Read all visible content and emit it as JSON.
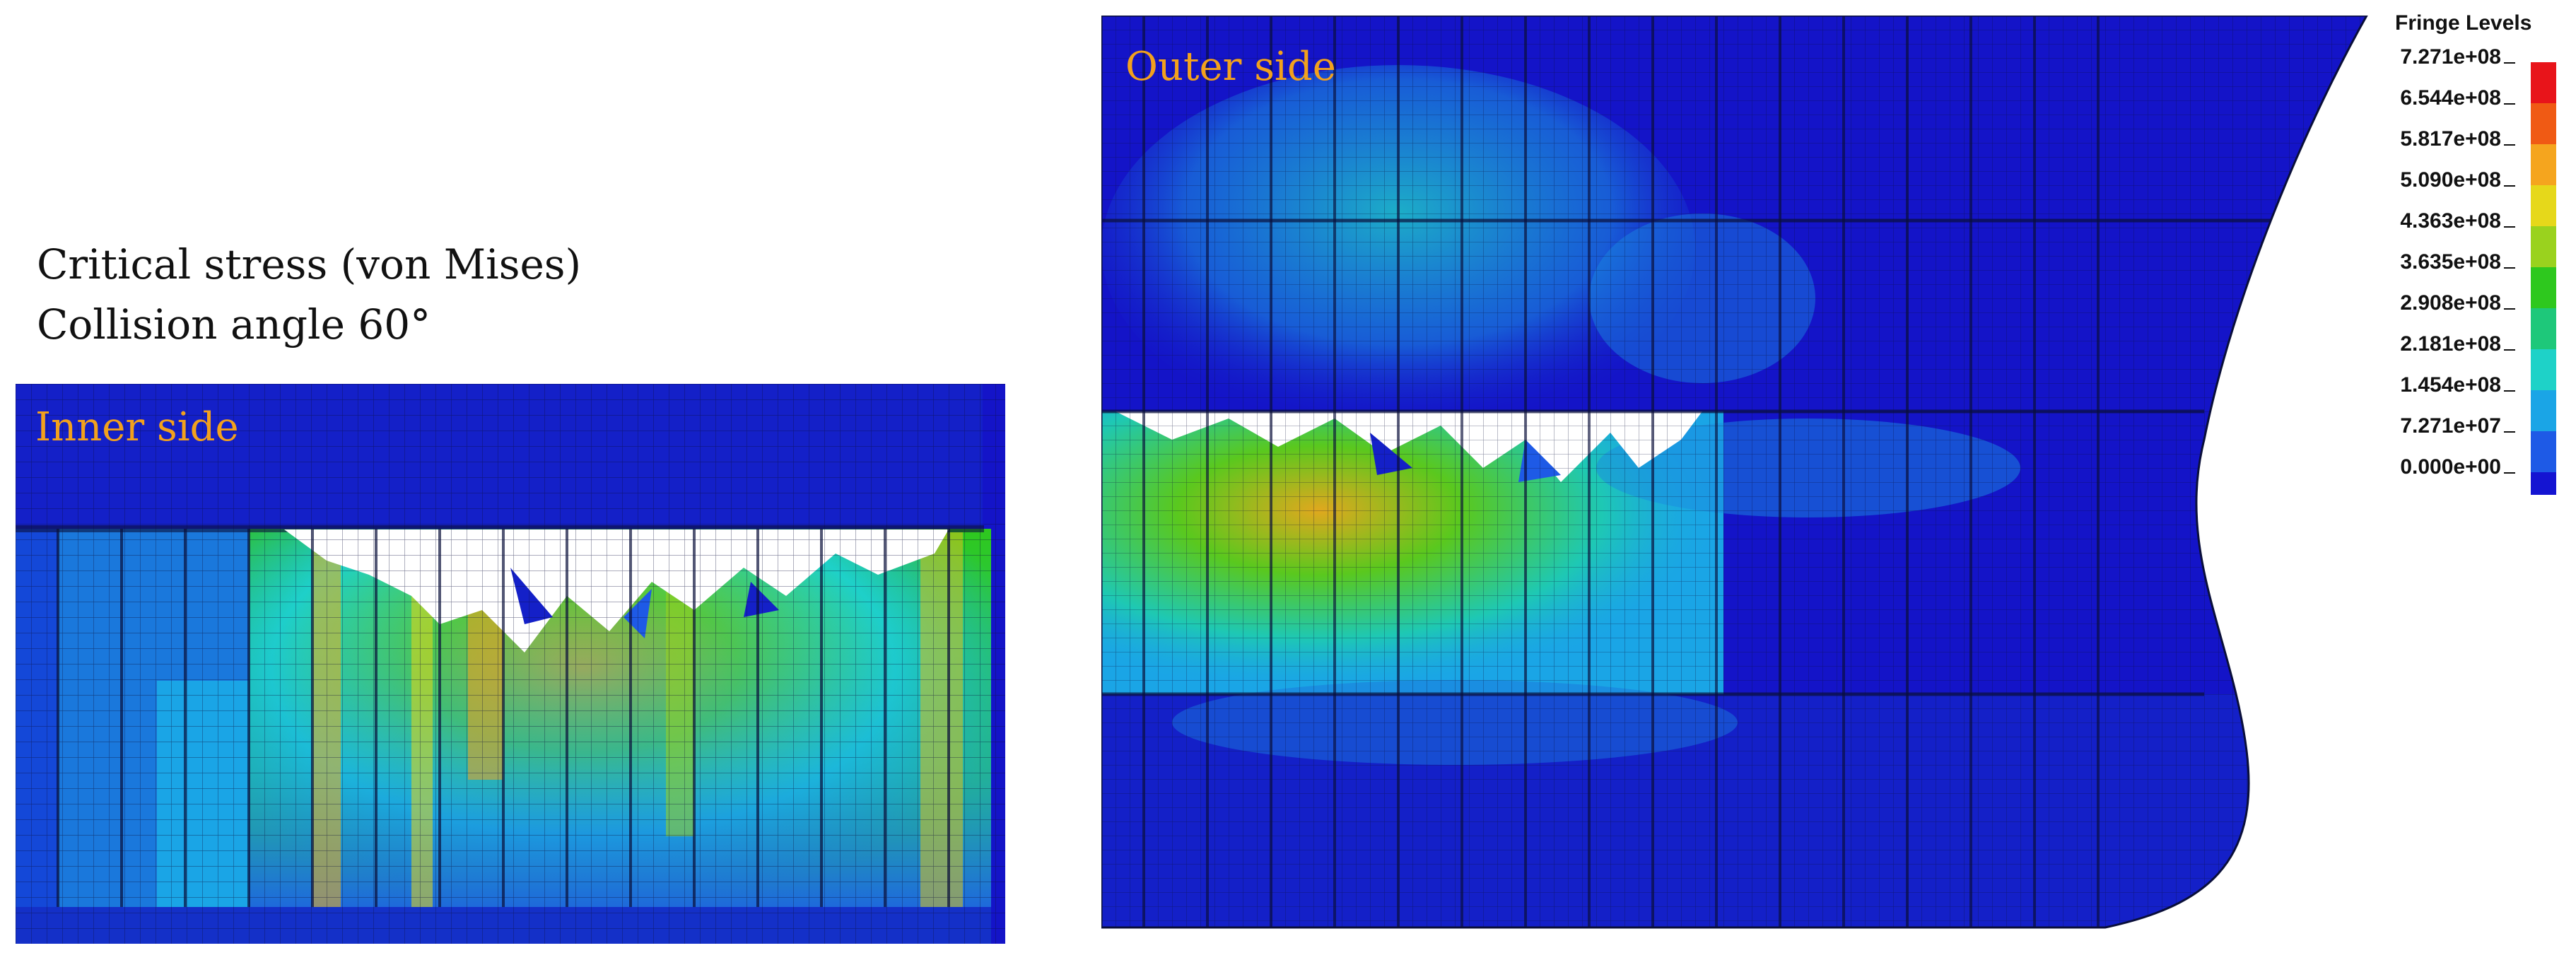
{
  "caption": {
    "line1": "Critical stress (von Mises)",
    "line2": "Collision angle 60°"
  },
  "panels": {
    "inner": {
      "label": "Inner side"
    },
    "outer": {
      "label": "Outer side"
    }
  },
  "colors": {
    "label_orange": "#f2a11d",
    "background": "#ffffff",
    "mesh_line": "#0a0f3a"
  },
  "legend": {
    "title": "Fringe Levels",
    "levels": [
      "7.271e+08",
      "6.544e+08",
      "5.817e+08",
      "5.090e+08",
      "4.363e+08",
      "3.635e+08",
      "2.908e+08",
      "2.181e+08",
      "1.454e+08",
      "7.271e+07",
      "0.000e+00"
    ],
    "colors": [
      "#e8141a",
      "#f05a14",
      "#f5a51e",
      "#e6d81a",
      "#9ad21e",
      "#2ec81e",
      "#1ec87a",
      "#1ed2c8",
      "#1aa5e6",
      "#1e5ae6",
      "#1414d2"
    ]
  }
}
